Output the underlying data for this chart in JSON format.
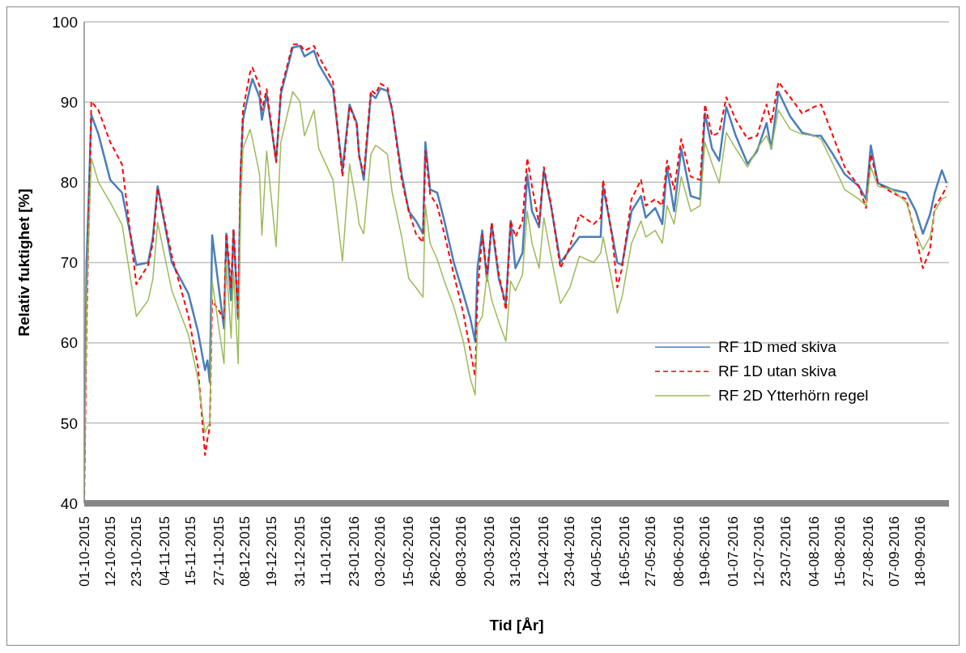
{
  "chart_data": {
    "type": "line",
    "xlabel": "Tid [År]",
    "ylabel": "Relativ fuktighet [%]",
    "x": [
      "2015-10-01",
      "2015-10-02",
      "2015-10-04",
      "2015-10-07",
      "2015-10-12",
      "2015-10-17",
      "2015-10-23",
      "2015-10-28",
      "2015-10-30",
      "2015-11-01",
      "2015-11-07",
      "2015-11-14",
      "2015-11-18",
      "2015-11-21",
      "2015-11-22",
      "2015-11-23",
      "2015-11-24",
      "2015-11-29",
      "2015-11-30",
      "2015-12-02",
      "2015-12-03",
      "2015-12-05",
      "2015-12-06",
      "2015-12-07",
      "2015-12-10",
      "2015-12-11",
      "2015-12-14",
      "2015-12-15",
      "2015-12-17",
      "2015-12-21",
      "2015-12-23",
      "2015-12-28",
      "2015-12-31",
      "2016-01-02",
      "2016-01-06",
      "2016-01-08",
      "2016-01-14",
      "2016-01-18",
      "2016-01-21",
      "2016-01-24",
      "2016-01-25",
      "2016-01-27",
      "2016-01-30",
      "2016-02-01",
      "2016-02-03",
      "2016-02-06",
      "2016-02-08",
      "2016-02-12",
      "2016-02-15",
      "2016-02-18",
      "2016-02-21",
      "2016-02-22",
      "2016-02-24",
      "2016-02-27",
      "2016-03-01",
      "2016-03-05",
      "2016-03-09",
      "2016-03-12",
      "2016-03-14",
      "2016-03-15",
      "2016-03-17",
      "2016-03-19",
      "2016-03-21",
      "2016-03-24",
      "2016-03-27",
      "2016-03-29",
      "2016-03-31",
      "2016-04-03",
      "2016-04-05",
      "2016-04-07",
      "2016-04-10",
      "2016-04-12",
      "2016-04-15",
      "2016-04-19",
      "2016-04-23",
      "2016-04-27",
      "2016-05-03",
      "2016-05-06",
      "2016-05-07",
      "2016-05-11",
      "2016-05-13",
      "2016-05-15",
      "2016-05-19",
      "2016-05-23",
      "2016-05-25",
      "2016-05-29",
      "2016-06-01",
      "2016-06-03",
      "2016-06-06",
      "2016-06-09",
      "2016-06-13",
      "2016-06-17",
      "2016-06-19",
      "2016-06-22",
      "2016-06-25",
      "2016-06-28",
      "2016-07-02",
      "2016-07-07",
      "2016-07-11",
      "2016-07-15",
      "2016-07-17",
      "2016-07-20",
      "2016-07-25",
      "2016-07-30",
      "2016-08-04",
      "2016-08-07",
      "2016-08-12",
      "2016-08-17",
      "2016-08-23",
      "2016-08-26",
      "2016-08-28",
      "2016-08-31",
      "2016-09-06",
      "2016-09-12",
      "2016-09-16",
      "2016-09-19",
      "2016-09-22",
      "2016-09-24",
      "2016-09-27",
      "2016-09-29"
    ],
    "series": [
      {
        "name": "RF 1D med skiva",
        "color": "#4a7ebb",
        "line_style": "solid",
        "values": [
          45,
          70,
          88.4,
          86,
          80.3,
          78.7,
          69.7,
          70,
          73.2,
          79.5,
          70,
          66.1,
          61.4,
          56.6,
          57.8,
          55.1,
          73.4,
          61.8,
          73.6,
          65.3,
          74,
          63,
          81,
          87.8,
          91.8,
          92.9,
          90.6,
          87.8,
          91,
          82.7,
          91,
          96.8,
          97,
          95.7,
          96.4,
          94.7,
          91.7,
          81.5,
          89.7,
          87.4,
          83.5,
          80.3,
          91,
          90.5,
          91.7,
          91.4,
          89,
          81,
          76.4,
          75.2,
          73.6,
          85,
          79.1,
          78.7,
          75.2,
          70,
          66.1,
          63,
          60.2,
          69.3,
          74,
          67.7,
          74.8,
          68,
          64.9,
          75.2,
          69.3,
          71.2,
          81,
          76.4,
          74.4,
          81.5,
          77.1,
          70,
          71.6,
          73.2,
          73.2,
          73.2,
          79.5,
          73.2,
          70,
          69.7,
          76.4,
          78.3,
          75.6,
          76.8,
          74.8,
          81.9,
          76.4,
          84.2,
          78.3,
          77.9,
          88.6,
          84.2,
          82.7,
          89.4,
          85.8,
          82.3,
          83.9,
          87.4,
          84.2,
          91.3,
          88.2,
          86.2,
          85.8,
          85.8,
          83.5,
          81,
          79.5,
          77.9,
          84.6,
          79.9,
          79.1,
          78.7,
          76.4,
          73.6,
          76,
          78.7,
          81.5,
          79.9
        ]
      },
      {
        "name": "RF 1D utan skiva",
        "color": "#ff0000",
        "line_style": "dashed",
        "values": [
          40,
          62,
          90.1,
          89,
          85,
          82.2,
          67.3,
          69.7,
          72.5,
          79.3,
          70.8,
          63.3,
          57,
          46,
          48,
          49.5,
          65.3,
          63,
          73.6,
          66.9,
          74.2,
          63,
          81,
          89,
          93.7,
          94.3,
          92,
          89,
          91.6,
          82.5,
          91.5,
          97.2,
          97.2,
          96.4,
          97,
          95.7,
          92.5,
          80.7,
          89.5,
          87.2,
          83.2,
          81,
          91.5,
          91,
          92.3,
          91.8,
          89,
          80.3,
          76.4,
          73.6,
          72.5,
          83.9,
          78.5,
          77.1,
          73.6,
          68.5,
          63.7,
          59,
          55.8,
          66.1,
          73.5,
          68.5,
          75,
          68.5,
          64.1,
          75.2,
          73.2,
          75.2,
          83,
          79.5,
          74.8,
          81.9,
          77.3,
          69.3,
          72,
          76,
          74.8,
          75.6,
          80.3,
          72.8,
          66.9,
          69.3,
          77.9,
          80.3,
          77.1,
          77.9,
          77.1,
          82.7,
          79.1,
          85.4,
          80.7,
          80.3,
          89.7,
          85.8,
          86.2,
          90.6,
          87.8,
          85.4,
          85.8,
          89.7,
          87.4,
          92.5,
          90.6,
          88.6,
          89.4,
          89.7,
          85.8,
          81.9,
          79.5,
          76.8,
          83.5,
          79.9,
          78.7,
          77.9,
          73.2,
          69.3,
          71.6,
          77,
          78.3,
          79.5
        ]
      },
      {
        "name": "RF 2D Ytterhörn regel",
        "color": "#9bbb59",
        "line_style": "solid",
        "values": [
          40,
          65,
          83,
          80,
          77.5,
          74.7,
          63.3,
          65.3,
          68,
          75,
          66.5,
          61,
          55.5,
          48.8,
          49.5,
          50,
          67.7,
          57.4,
          70,
          60.6,
          68.9,
          57.4,
          77.1,
          84.2,
          86.6,
          85.4,
          81,
          73.4,
          83.9,
          72,
          85,
          91.3,
          90.1,
          85.8,
          89,
          84.2,
          80.3,
          70.2,
          82.3,
          77.1,
          74.8,
          73.6,
          83.5,
          84.6,
          84.2,
          83.5,
          78.7,
          73.2,
          68,
          66.9,
          65.7,
          77.1,
          72.4,
          70.4,
          67.7,
          64.5,
          60.2,
          55.5,
          53.5,
          62.2,
          63.3,
          68.5,
          65.3,
          62.6,
          60.2,
          67.7,
          66.5,
          68.5,
          76.4,
          72.4,
          69.3,
          75.6,
          70.8,
          64.9,
          66.9,
          70.8,
          70,
          71.2,
          73.2,
          67.3,
          63.7,
          65.7,
          72.4,
          75.2,
          73.2,
          74,
          72.4,
          77.1,
          74.8,
          80.7,
          76.4,
          77.1,
          85,
          82.3,
          79.9,
          86.2,
          84.2,
          81.9,
          84.2,
          85.8,
          84.2,
          89,
          86.6,
          86,
          85.8,
          85.4,
          82.3,
          79.1,
          77.9,
          77.1,
          81.9,
          79.5,
          79.1,
          77.5,
          73.6,
          71.6,
          73.2,
          76.4,
          77.9,
          78.2
        ]
      }
    ],
    "xlim": [
      "2015-10-01",
      "2016-09-30"
    ],
    "xticks": [
      {
        "value": "2015-10-01",
        "label": "01-10-2015"
      },
      {
        "value": "2015-10-12",
        "label": "12-10-2015"
      },
      {
        "value": "2015-10-23",
        "label": "23-10-2015"
      },
      {
        "value": "2015-11-04",
        "label": "04-11-2015"
      },
      {
        "value": "2015-11-15",
        "label": "15-11-2015"
      },
      {
        "value": "2015-11-27",
        "label": "27-11-2015"
      },
      {
        "value": "2015-12-08",
        "label": "08-12-2015"
      },
      {
        "value": "2015-12-19",
        "label": "19-12-2015"
      },
      {
        "value": "2015-12-31",
        "label": "31-12-2015"
      },
      {
        "value": "2016-01-11",
        "label": "11-01-2016"
      },
      {
        "value": "2016-01-23",
        "label": "23-01-2016"
      },
      {
        "value": "2016-02-03",
        "label": "03-02-2016"
      },
      {
        "value": "2016-02-15",
        "label": "15-02-2016"
      },
      {
        "value": "2016-02-26",
        "label": "26-02-2016"
      },
      {
        "value": "2016-03-08",
        "label": "08-03-2016"
      },
      {
        "value": "2016-03-20",
        "label": "20-03-2016"
      },
      {
        "value": "2016-03-31",
        "label": "31-03-2016"
      },
      {
        "value": "2016-04-12",
        "label": "12-04-2016"
      },
      {
        "value": "2016-04-23",
        "label": "23-04-2016"
      },
      {
        "value": "2016-05-04",
        "label": "04-05-2016"
      },
      {
        "value": "2016-05-16",
        "label": "16-05-2016"
      },
      {
        "value": "2016-05-27",
        "label": "27-05-2016"
      },
      {
        "value": "2016-06-08",
        "label": "08-06-2016"
      },
      {
        "value": "2016-06-19",
        "label": "19-06-2016"
      },
      {
        "value": "2016-07-01",
        "label": "01-07-2016"
      },
      {
        "value": "2016-07-12",
        "label": "12-07-2016"
      },
      {
        "value": "2016-07-23",
        "label": "23-07-2016"
      },
      {
        "value": "2016-08-04",
        "label": "04-08-2016"
      },
      {
        "value": "2016-08-15",
        "label": "15-08-2016"
      },
      {
        "value": "2016-08-27",
        "label": "27-08-2016"
      },
      {
        "value": "2016-09-07",
        "label": "07-09-2016"
      },
      {
        "value": "2016-09-18",
        "label": "18-09-2016"
      }
    ],
    "ylim": [
      40,
      100
    ],
    "yticks": [
      40,
      50,
      60,
      70,
      80,
      90,
      100
    ],
    "grid": "y",
    "legend": "right",
    "marker": "none"
  }
}
